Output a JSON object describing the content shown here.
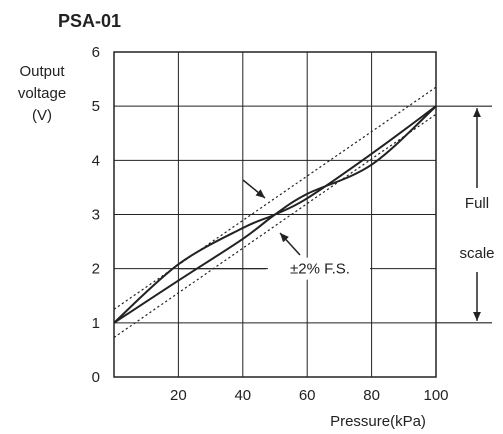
{
  "chart_data": {
    "type": "line",
    "title": "PSA-01",
    "ylabel_lines": [
      "Output",
      "voltage",
      "(V)"
    ],
    "xlabel": "Pressure(kPa)",
    "xlim": [
      0,
      100
    ],
    "ylim": [
      0,
      6
    ],
    "x_ticks": [
      20,
      40,
      60,
      80,
      100
    ],
    "y_ticks": [
      0,
      1,
      2,
      3,
      4,
      5,
      6
    ],
    "grid": true,
    "series": [
      {
        "style": "solid",
        "x": [
          0,
          20,
          40,
          50,
          60,
          80,
          100
        ],
        "y": [
          1.0,
          2.08,
          2.75,
          3.0,
          3.3,
          4.12,
          5.0
        ]
      },
      {
        "style": "solid",
        "x": [
          0,
          20,
          40,
          50,
          60,
          80,
          100
        ],
        "y": [
          1.0,
          1.78,
          2.55,
          3.0,
          3.38,
          3.92,
          5.0
        ]
      },
      {
        "style": "dotted",
        "x": [
          0,
          100
        ],
        "y": [
          1.25,
          5.35
        ]
      },
      {
        "style": "dotted",
        "x": [
          0,
          100
        ],
        "y": [
          0.73,
          4.85
        ]
      }
    ],
    "annotations": {
      "tolerance_label": "±2% F.S.",
      "full_scale_label_lines": [
        "Full",
        "scale"
      ],
      "full_scale_range": [
        1,
        5
      ]
    }
  }
}
